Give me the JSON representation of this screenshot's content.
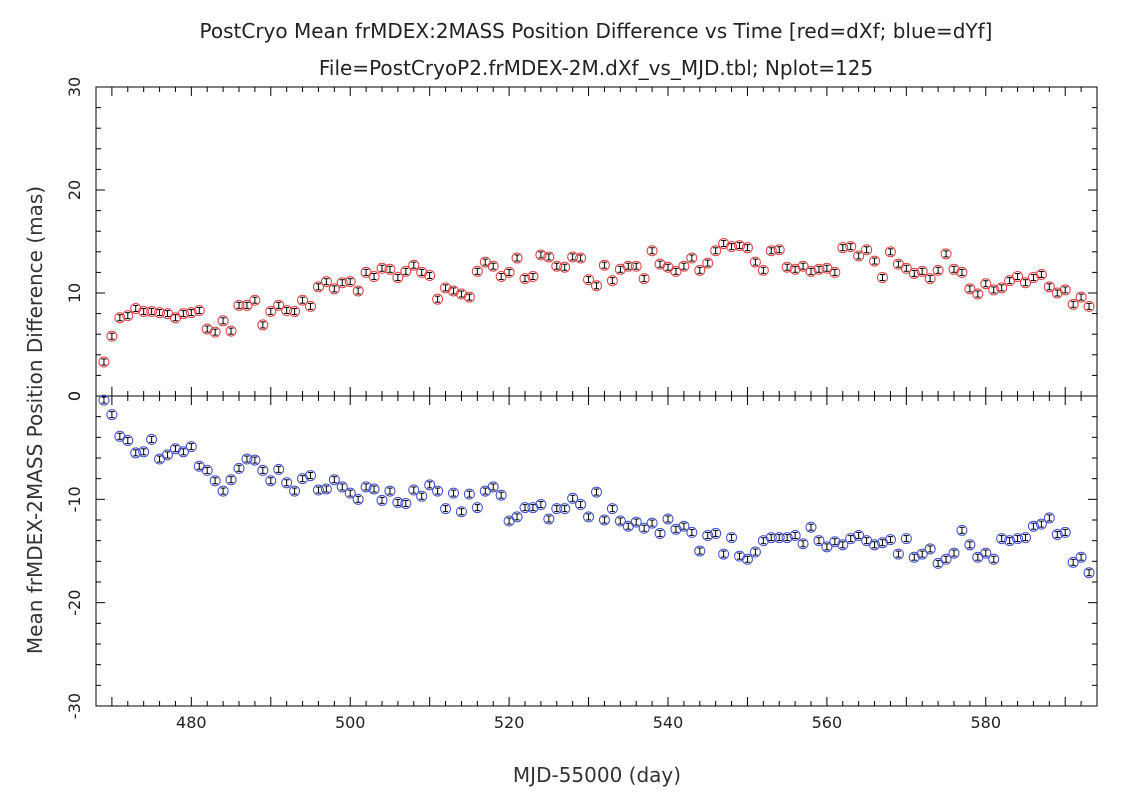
{
  "chart_data": {
    "type": "scatter",
    "title": "PostCryo Mean frMDEX:2MASS Position Difference vs Time [red=dXf; blue=dYf]",
    "subtitle": "File=PostCryoP2.frMDEX-2M.dXf_vs_MJD.tbl; Nplot=125",
    "xlabel": "MJD-55000 (day)",
    "ylabel": "Mean frMDEX-2MASS Position Difference (mas)",
    "xlim": [
      468,
      594
    ],
    "x_ticks": [
      "480",
      "500",
      "520",
      "540",
      "560",
      "580"
    ],
    "x_tick_values": [
      480,
      500,
      520,
      540,
      560,
      580
    ],
    "top_panel": {
      "ylim": [
        0,
        30
      ],
      "y_ticks": [
        "0",
        "10",
        "20",
        "30"
      ],
      "y_tick_values": [
        0,
        10,
        20,
        30
      ]
    },
    "bottom_panel": {
      "ylim": [
        -30,
        0
      ],
      "y_ticks": [
        "-30",
        "-20",
        "-10",
        "0"
      ],
      "y_tick_values": [
        -30,
        -20,
        -10,
        0
      ]
    },
    "series": [
      {
        "name": "dXf",
        "color": "#e83a3a",
        "panel": "top",
        "x": [
          469,
          470,
          471,
          472,
          473,
          474,
          475,
          476,
          477,
          478,
          479,
          480,
          481,
          482,
          483,
          484,
          485,
          486,
          487,
          488,
          489,
          490,
          491,
          492,
          493,
          494,
          495,
          496,
          497,
          498,
          499,
          500,
          501,
          502,
          503,
          504,
          505,
          506,
          507,
          508,
          509,
          510,
          511,
          512,
          513,
          514,
          515,
          516,
          517,
          518,
          519,
          520,
          521,
          522,
          523,
          524,
          525,
          526,
          527,
          528,
          529,
          530,
          531,
          532,
          533,
          534,
          535,
          536,
          537,
          538,
          539,
          540,
          541,
          542,
          543,
          544,
          545,
          546,
          547,
          548,
          549,
          550,
          551,
          552,
          553,
          554,
          555,
          556,
          557,
          558,
          559,
          560,
          561,
          562,
          563,
          564,
          565,
          566,
          567,
          568,
          569,
          570,
          571,
          572,
          573,
          574,
          575,
          576,
          577,
          578,
          579,
          580,
          581,
          582,
          583,
          584,
          585,
          586,
          587,
          588,
          589,
          590,
          591,
          592,
          593
        ],
        "y": [
          3.3,
          5.8,
          7.6,
          7.8,
          8.5,
          8.2,
          8.2,
          8.1,
          8.0,
          7.6,
          8.0,
          8.1,
          8.3,
          6.5,
          6.2,
          7.3,
          6.3,
          8.8,
          8.8,
          9.3,
          6.9,
          8.2,
          8.8,
          8.3,
          8.2,
          9.3,
          8.7,
          10.6,
          11.1,
          10.4,
          11.0,
          11.1,
          10.2,
          12.0,
          11.6,
          12.4,
          12.3,
          11.5,
          12.1,
          12.7,
          12.0,
          11.7,
          9.4,
          10.5,
          10.2,
          9.9,
          9.6,
          12.1,
          13.0,
          12.6,
          11.6,
          12.0,
          13.4,
          11.4,
          11.6,
          13.7,
          13.5,
          12.6,
          12.5,
          13.5,
          13.4,
          11.3,
          10.7,
          12.7,
          11.2,
          12.3,
          12.6,
          12.6,
          11.4,
          14.1,
          12.8,
          12.5,
          12.1,
          12.6,
          13.4,
          12.2,
          12.9,
          14.1,
          14.8,
          14.5,
          14.6,
          14.4,
          13.0,
          12.2,
          14.1,
          14.2,
          12.5,
          12.3,
          12.6,
          12.1,
          12.3,
          12.4,
          12.0,
          14.4,
          14.5,
          13.6,
          14.2,
          13.1,
          11.5,
          14.0,
          12.8,
          12.4,
          11.9,
          12.1,
          11.4,
          12.2,
          13.8,
          12.3,
          12.0,
          10.4,
          9.9,
          10.9,
          10.3,
          10.5,
          11.2,
          11.6,
          11.0,
          11.5,
          11.8,
          10.6,
          10.0,
          10.3,
          8.9,
          9.6,
          8.7
        ]
      },
      {
        "name": "dYf",
        "color": "#3a4cd8",
        "panel": "bottom",
        "x": [
          469,
          470,
          471,
          472,
          473,
          474,
          475,
          476,
          477,
          478,
          479,
          480,
          481,
          482,
          483,
          484,
          485,
          486,
          487,
          488,
          489,
          490,
          491,
          492,
          493,
          494,
          495,
          496,
          497,
          498,
          499,
          500,
          501,
          502,
          503,
          504,
          505,
          506,
          507,
          508,
          509,
          510,
          511,
          512,
          513,
          514,
          515,
          516,
          517,
          518,
          519,
          520,
          521,
          522,
          523,
          524,
          525,
          526,
          527,
          528,
          529,
          530,
          531,
          532,
          533,
          534,
          535,
          536,
          537,
          538,
          539,
          540,
          541,
          542,
          543,
          544,
          545,
          546,
          547,
          548,
          549,
          550,
          551,
          552,
          553,
          554,
          555,
          556,
          557,
          558,
          559,
          560,
          561,
          562,
          563,
          564,
          565,
          566,
          567,
          568,
          569,
          570,
          571,
          572,
          573,
          574,
          575,
          576,
          577,
          578,
          579,
          580,
          581,
          582,
          583,
          584,
          585,
          586,
          587,
          588,
          589,
          590,
          591,
          592,
          593
        ],
        "y": [
          -0.4,
          -1.8,
          -3.9,
          -4.3,
          -5.5,
          -5.4,
          -4.2,
          -6.1,
          -5.7,
          -5.1,
          -5.4,
          -4.9,
          -6.8,
          -7.2,
          -8.2,
          -9.2,
          -8.1,
          -7.0,
          -6.1,
          -6.2,
          -7.2,
          -8.2,
          -7.1,
          -8.4,
          -9.2,
          -8.0,
          -7.7,
          -9.1,
          -9.0,
          -8.1,
          -8.8,
          -9.4,
          -10.0,
          -8.8,
          -9.0,
          -10.1,
          -9.2,
          -10.3,
          -10.4,
          -9.1,
          -9.7,
          -8.6,
          -9.2,
          -10.9,
          -9.4,
          -11.2,
          -9.5,
          -10.8,
          -9.2,
          -8.8,
          -9.6,
          -12.1,
          -11.7,
          -10.8,
          -10.8,
          -10.5,
          -11.9,
          -10.9,
          -10.9,
          -9.9,
          -10.5,
          -11.7,
          -9.3,
          -12.0,
          -10.9,
          -12.1,
          -12.6,
          -12.2,
          -12.8,
          -12.3,
          -13.3,
          -11.9,
          -12.9,
          -12.6,
          -13.2,
          -15.0,
          -13.5,
          -13.3,
          -15.3,
          -13.7,
          -15.5,
          -15.8,
          -15.1,
          -14.0,
          -13.7,
          -13.7,
          -13.7,
          -13.5,
          -14.3,
          -12.7,
          -14.0,
          -14.6,
          -14.1,
          -14.4,
          -13.8,
          -13.5,
          -14.0,
          -14.4,
          -14.2,
          -13.9,
          -15.3,
          -13.8,
          -15.6,
          -15.3,
          -14.8,
          -16.2,
          -15.8,
          -15.2,
          -13.0,
          -14.4,
          -15.6,
          -15.2,
          -15.8,
          -13.8,
          -14.0,
          -13.8,
          -13.7,
          -12.6,
          -12.4,
          -11.8,
          -13.4,
          -13.2,
          -16.1,
          -15.6,
          -17.1
        ]
      }
    ]
  }
}
